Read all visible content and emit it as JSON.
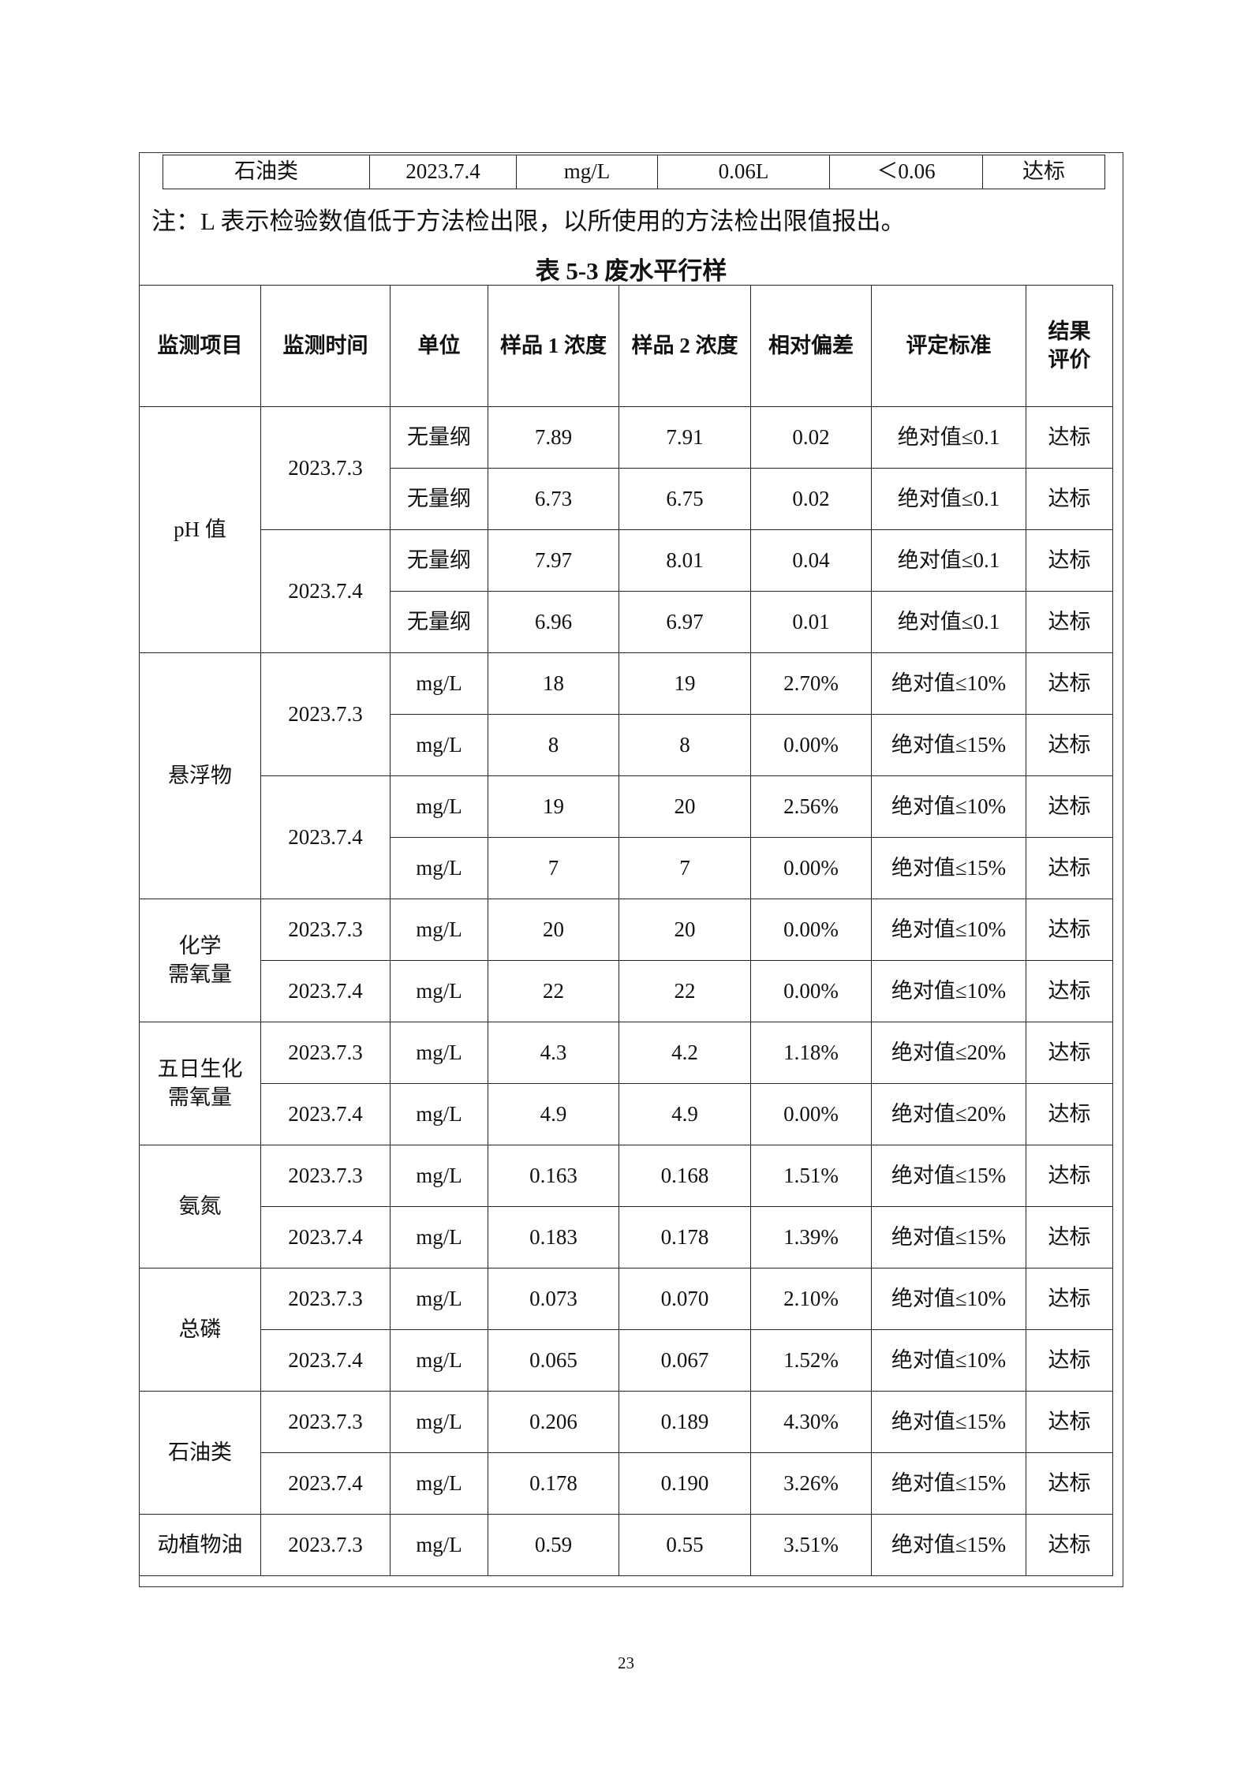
{
  "continued_row": {
    "item": "石油类",
    "date": "2023.7.4",
    "unit": "mg/L",
    "value": "0.06L",
    "limit": "＜0.06",
    "result": "达标"
  },
  "note": "注：L 表示检验数值低于方法检出限，以所使用的方法检出限值报出。",
  "table_title": "表 5-3  废水平行样",
  "headers": [
    "监测项目",
    "监测时间",
    "单位",
    "样品 1 浓度",
    "样品 2 浓度",
    "相对偏差",
    "评定标准",
    "结果评价"
  ],
  "groups": [
    {
      "item": "pH 值",
      "dates": [
        {
          "date": "2023.7.3",
          "rows": [
            {
              "unit": "无量纲",
              "s1": "7.89",
              "s2": "7.91",
              "dev": "0.02",
              "std": "绝对值≤0.1",
              "result": "达标"
            },
            {
              "unit": "无量纲",
              "s1": "6.73",
              "s2": "6.75",
              "dev": "0.02",
              "std": "绝对值≤0.1",
              "result": "达标"
            }
          ]
        },
        {
          "date": "2023.7.4",
          "rows": [
            {
              "unit": "无量纲",
              "s1": "7.97",
              "s2": "8.01",
              "dev": "0.04",
              "std": "绝对值≤0.1",
              "result": "达标"
            },
            {
              "unit": "无量纲",
              "s1": "6.96",
              "s2": "6.97",
              "dev": "0.01",
              "std": "绝对值≤0.1",
              "result": "达标"
            }
          ]
        }
      ]
    },
    {
      "item": "悬浮物",
      "dates": [
        {
          "date": "2023.7.3",
          "rows": [
            {
              "unit": "mg/L",
              "s1": "18",
              "s2": "19",
              "dev": "2.70%",
              "std": "绝对值≤10%",
              "result": "达标"
            },
            {
              "unit": "mg/L",
              "s1": "8",
              "s2": "8",
              "dev": "0.00%",
              "std": "绝对值≤15%",
              "result": "达标"
            }
          ]
        },
        {
          "date": "2023.7.4",
          "rows": [
            {
              "unit": "mg/L",
              "s1": "19",
              "s2": "20",
              "dev": "2.56%",
              "std": "绝对值≤10%",
              "result": "达标"
            },
            {
              "unit": "mg/L",
              "s1": "7",
              "s2": "7",
              "dev": "0.00%",
              "std": "绝对值≤15%",
              "result": "达标"
            }
          ]
        }
      ]
    },
    {
      "item": "化学\n需氧量",
      "dates": [
        {
          "date": "2023.7.3",
          "rows": [
            {
              "unit": "mg/L",
              "s1": "20",
              "s2": "20",
              "dev": "0.00%",
              "std": "绝对值≤10%",
              "result": "达标"
            }
          ]
        },
        {
          "date": "2023.7.4",
          "rows": [
            {
              "unit": "mg/L",
              "s1": "22",
              "s2": "22",
              "dev": "0.00%",
              "std": "绝对值≤10%",
              "result": "达标"
            }
          ]
        }
      ]
    },
    {
      "item": "五日生化\n需氧量",
      "dates": [
        {
          "date": "2023.7.3",
          "rows": [
            {
              "unit": "mg/L",
              "s1": "4.3",
              "s2": "4.2",
              "dev": "1.18%",
              "std": "绝对值≤20%",
              "result": "达标"
            }
          ]
        },
        {
          "date": "2023.7.4",
          "rows": [
            {
              "unit": "mg/L",
              "s1": "4.9",
              "s2": "4.9",
              "dev": "0.00%",
              "std": "绝对值≤20%",
              "result": "达标"
            }
          ]
        }
      ]
    },
    {
      "item": "氨氮",
      "dates": [
        {
          "date": "2023.7.3",
          "rows": [
            {
              "unit": "mg/L",
              "s1": "0.163",
              "s2": "0.168",
              "dev": "1.51%",
              "std": "绝对值≤15%",
              "result": "达标"
            }
          ]
        },
        {
          "date": "2023.7.4",
          "rows": [
            {
              "unit": "mg/L",
              "s1": "0.183",
              "s2": "0.178",
              "dev": "1.39%",
              "std": "绝对值≤15%",
              "result": "达标"
            }
          ]
        }
      ]
    },
    {
      "item": "总磷",
      "dates": [
        {
          "date": "2023.7.3",
          "rows": [
            {
              "unit": "mg/L",
              "s1": "0.073",
              "s2": "0.070",
              "dev": "2.10%",
              "std": "绝对值≤10%",
              "result": "达标"
            }
          ]
        },
        {
          "date": "2023.7.4",
          "rows": [
            {
              "unit": "mg/L",
              "s1": "0.065",
              "s2": "0.067",
              "dev": "1.52%",
              "std": "绝对值≤10%",
              "result": "达标"
            }
          ]
        }
      ]
    },
    {
      "item": "石油类",
      "dates": [
        {
          "date": "2023.7.3",
          "rows": [
            {
              "unit": "mg/L",
              "s1": "0.206",
              "s2": "0.189",
              "dev": "4.30%",
              "std": "绝对值≤15%",
              "result": "达标"
            }
          ]
        },
        {
          "date": "2023.7.4",
          "rows": [
            {
              "unit": "mg/L",
              "s1": "0.178",
              "s2": "0.190",
              "dev": "3.26%",
              "std": "绝对值≤15%",
              "result": "达标"
            }
          ]
        }
      ]
    },
    {
      "item": "动植物油",
      "dates": [
        {
          "date": "2023.7.3",
          "rows": [
            {
              "unit": "mg/L",
              "s1": "0.59",
              "s2": "0.55",
              "dev": "3.51%",
              "std": "绝对值≤15%",
              "result": "达标"
            }
          ]
        }
      ]
    }
  ],
  "page_number": "23"
}
